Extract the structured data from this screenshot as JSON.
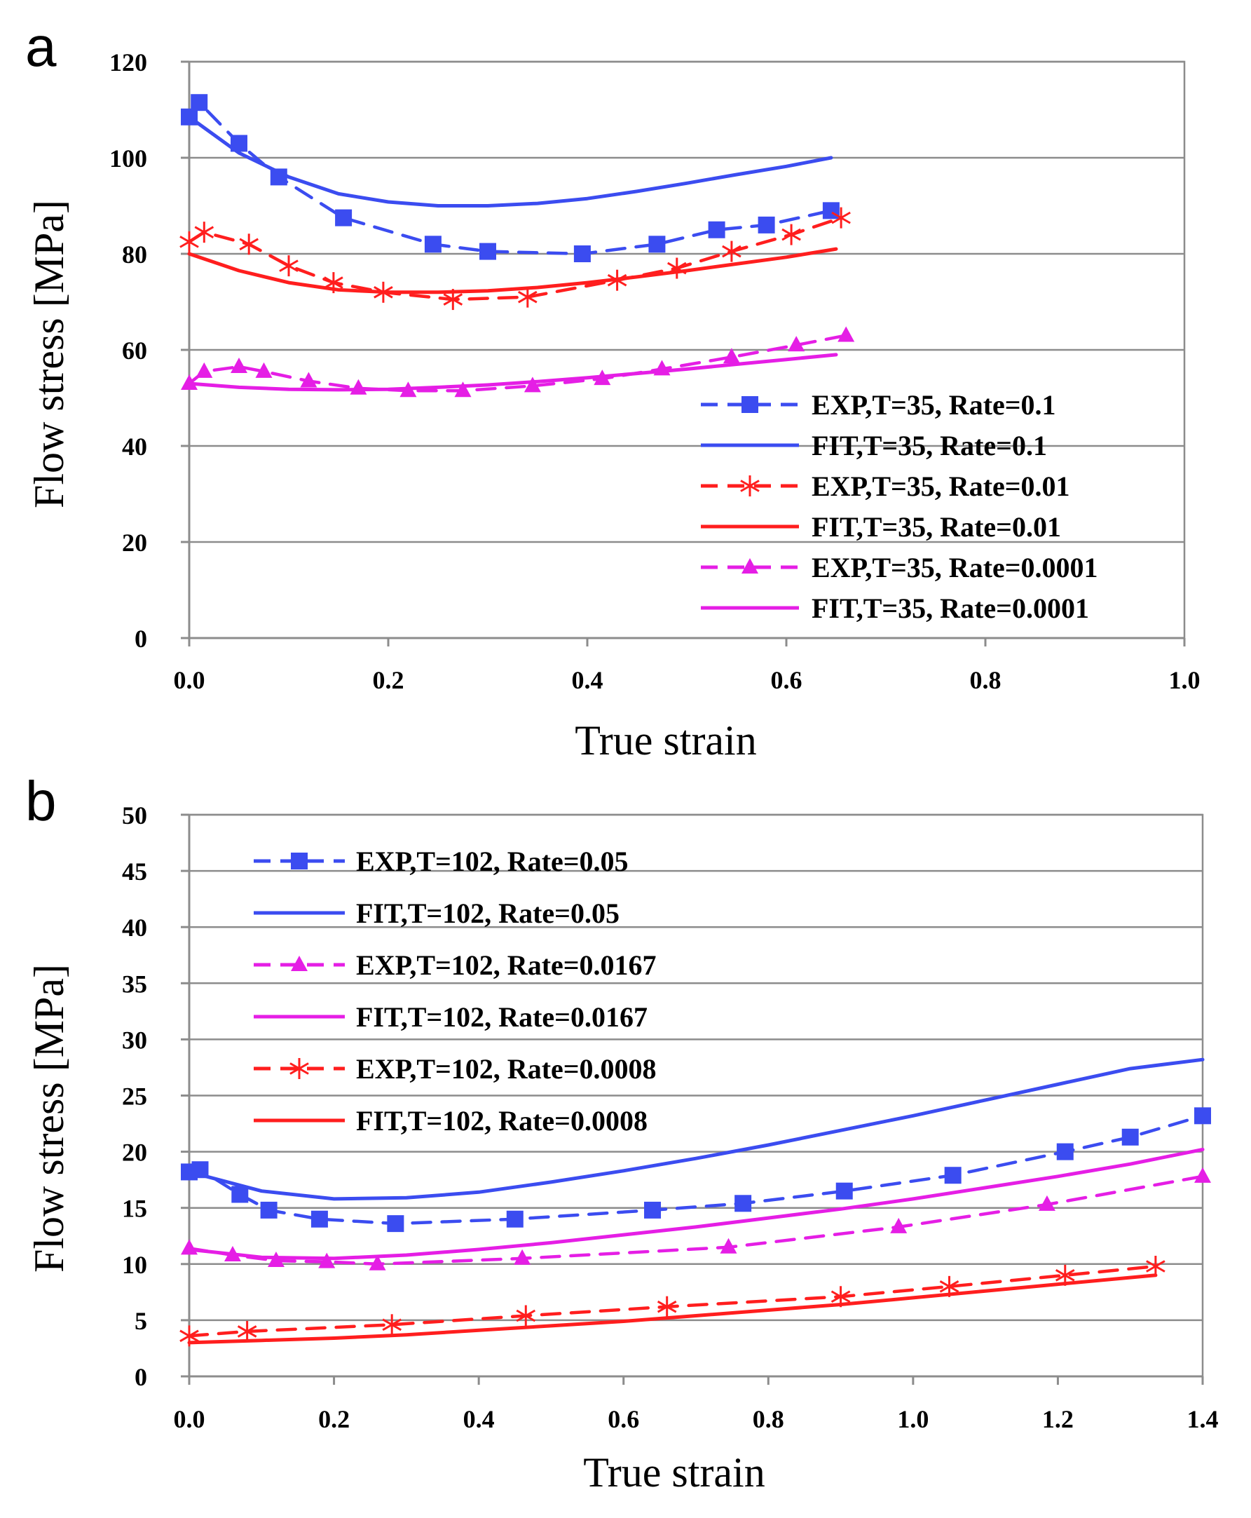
{
  "chart_data": [
    {
      "type": "line",
      "panel_label": "a",
      "title": "",
      "xlabel": "True strain",
      "ylabel": "Flow stress [MPa]",
      "xlim": [
        0.0,
        1.0
      ],
      "ylim": [
        0,
        120
      ],
      "xticks": [
        "0.0",
        "0.2",
        "0.4",
        "0.6",
        "0.8",
        "1.0"
      ],
      "yticks": [
        "0",
        "20",
        "40",
        "60",
        "80",
        "100",
        "120"
      ],
      "grid": "horizontal",
      "legend_position": "bottom-right",
      "series": [
        {
          "name": "EXP,T=35, Rate=0.1",
          "color": "#3b4cf0",
          "dash": "dashed",
          "marker": "square",
          "x": [
            0.0,
            0.01,
            0.05,
            0.09,
            0.155,
            0.245,
            0.3,
            0.395,
            0.47,
            0.53,
            0.58,
            0.645
          ],
          "y": [
            108.5,
            111.5,
            103,
            96,
            87.5,
            82,
            80.5,
            80,
            82,
            85,
            86,
            89
          ]
        },
        {
          "name": "FIT,T=35, Rate=0.1",
          "color": "#3b4cf0",
          "dash": "solid",
          "marker": "none",
          "x": [
            0.0,
            0.05,
            0.1,
            0.15,
            0.2,
            0.25,
            0.3,
            0.35,
            0.4,
            0.45,
            0.5,
            0.55,
            0.6,
            0.645
          ],
          "y": [
            108.5,
            101,
            96,
            92.5,
            90.8,
            90,
            90,
            90.5,
            91.5,
            93,
            94.7,
            96.5,
            98.2,
            100
          ]
        },
        {
          "name": "EXP,T=35, Rate=0.01",
          "color": "#ff1e1e",
          "dash": "dashed",
          "marker": "asterisk",
          "x": [
            0.0,
            0.015,
            0.06,
            0.1,
            0.145,
            0.195,
            0.265,
            0.34,
            0.43,
            0.49,
            0.545,
            0.605,
            0.655
          ],
          "y": [
            82.5,
            84.5,
            82,
            77.5,
            74,
            72,
            70.5,
            71,
            74.5,
            77,
            80.5,
            84,
            87.5
          ]
        },
        {
          "name": "FIT,T=35, Rate=0.01",
          "color": "#ff1e1e",
          "dash": "solid",
          "marker": "none",
          "x": [
            0.0,
            0.05,
            0.1,
            0.15,
            0.2,
            0.25,
            0.3,
            0.35,
            0.4,
            0.45,
            0.5,
            0.55,
            0.6,
            0.65
          ],
          "y": [
            80,
            76.5,
            74,
            72.5,
            72,
            72,
            72.3,
            73,
            74,
            75.2,
            76.5,
            77.9,
            79.3,
            81
          ]
        },
        {
          "name": "EXP,T=35, Rate=0.0001",
          "color": "#e51ee5",
          "dash": "dashed",
          "marker": "triangle",
          "x": [
            0.0,
            0.015,
            0.05,
            0.075,
            0.12,
            0.17,
            0.22,
            0.275,
            0.345,
            0.415,
            0.475,
            0.545,
            0.61,
            0.66
          ],
          "y": [
            53,
            55.5,
            56.5,
            55.5,
            53.5,
            52,
            51.5,
            51.5,
            52.5,
            54,
            56,
            58.5,
            61,
            63
          ]
        },
        {
          "name": "FIT,T=35, Rate=0.0001",
          "color": "#e51ee5",
          "dash": "solid",
          "marker": "none",
          "x": [
            0.0,
            0.05,
            0.1,
            0.15,
            0.2,
            0.25,
            0.3,
            0.35,
            0.4,
            0.45,
            0.5,
            0.55,
            0.6,
            0.65
          ],
          "y": [
            53,
            52.2,
            51.8,
            51.7,
            51.8,
            52.2,
            52.7,
            53.4,
            54.2,
            55.1,
            56,
            57,
            58,
            59
          ]
        }
      ]
    },
    {
      "type": "line",
      "panel_label": "b",
      "title": "",
      "xlabel": "True strain",
      "ylabel": "Flow stress [MPa]",
      "xlim": [
        0.0,
        1.4
      ],
      "ylim": [
        0,
        50
      ],
      "xticks": [
        "0.0",
        "0.2",
        "0.4",
        "0.6",
        "0.8",
        "1.0",
        "1.2",
        "1.4"
      ],
      "yticks": [
        "0",
        "5",
        "10",
        "15",
        "20",
        "25",
        "30",
        "35",
        "40",
        "45",
        "50"
      ],
      "grid": "horizontal",
      "legend_position": "top-left",
      "series": [
        {
          "name": "EXP,T=102, Rate=0.05",
          "color": "#3b4cf0",
          "dash": "dashed",
          "marker": "square",
          "x": [
            0.0,
            0.015,
            0.07,
            0.11,
            0.18,
            0.285,
            0.45,
            0.64,
            0.765,
            0.905,
            1.055,
            1.21,
            1.3,
            1.4
          ],
          "y": [
            18.2,
            18.4,
            16.2,
            14.8,
            14,
            13.6,
            14,
            14.8,
            15.4,
            16.5,
            17.9,
            20,
            21.3,
            23.2
          ]
        },
        {
          "name": "FIT,T=102, Rate=0.05",
          "color": "#3b4cf0",
          "dash": "solid",
          "marker": "none",
          "x": [
            0.0,
            0.1,
            0.2,
            0.3,
            0.4,
            0.5,
            0.6,
            0.7,
            0.8,
            0.9,
            1.0,
            1.1,
            1.2,
            1.3,
            1.4
          ],
          "y": [
            18.2,
            16.5,
            15.8,
            15.9,
            16.4,
            17.3,
            18.3,
            19.4,
            20.6,
            21.9,
            23.2,
            24.6,
            26,
            27.4,
            28.2
          ]
        },
        {
          "name": "EXP,T=102, Rate=0.0167",
          "color": "#e51ee5",
          "dash": "dashed",
          "marker": "triangle",
          "x": [
            0.0,
            0.06,
            0.12,
            0.19,
            0.26,
            0.46,
            0.745,
            0.98,
            1.185,
            1.4
          ],
          "y": [
            11.4,
            10.8,
            10.3,
            10.2,
            10,
            10.5,
            11.5,
            13.3,
            15.3,
            17.8
          ]
        },
        {
          "name": "FIT,T=102, Rate=0.0167",
          "color": "#e51ee5",
          "dash": "solid",
          "marker": "none",
          "x": [
            0.0,
            0.1,
            0.2,
            0.3,
            0.4,
            0.5,
            0.6,
            0.7,
            0.8,
            0.9,
            1.0,
            1.1,
            1.2,
            1.3,
            1.4
          ],
          "y": [
            11.3,
            10.6,
            10.5,
            10.8,
            11.3,
            11.9,
            12.6,
            13.3,
            14.1,
            14.9,
            15.8,
            16.8,
            17.8,
            18.9,
            20.2
          ]
        },
        {
          "name": "EXP,T=102, Rate=0.0008",
          "color": "#ff1e1e",
          "dash": "dashed",
          "marker": "asterisk",
          "x": [
            0.0,
            0.08,
            0.28,
            0.465,
            0.66,
            0.9,
            1.05,
            1.21,
            1.335
          ],
          "y": [
            3.6,
            4.0,
            4.6,
            5.4,
            6.2,
            7.1,
            8.0,
            9.0,
            9.8
          ]
        },
        {
          "name": "FIT,T=102, Rate=0.0008",
          "color": "#ff1e1e",
          "dash": "solid",
          "marker": "none",
          "x": [
            0.0,
            0.1,
            0.2,
            0.3,
            0.4,
            0.5,
            0.6,
            0.7,
            0.8,
            0.9,
            1.0,
            1.1,
            1.2,
            1.335
          ],
          "y": [
            3.0,
            3.2,
            3.4,
            3.7,
            4.1,
            4.5,
            4.9,
            5.4,
            5.9,
            6.4,
            7.0,
            7.6,
            8.2,
            9.0
          ]
        }
      ]
    }
  ]
}
